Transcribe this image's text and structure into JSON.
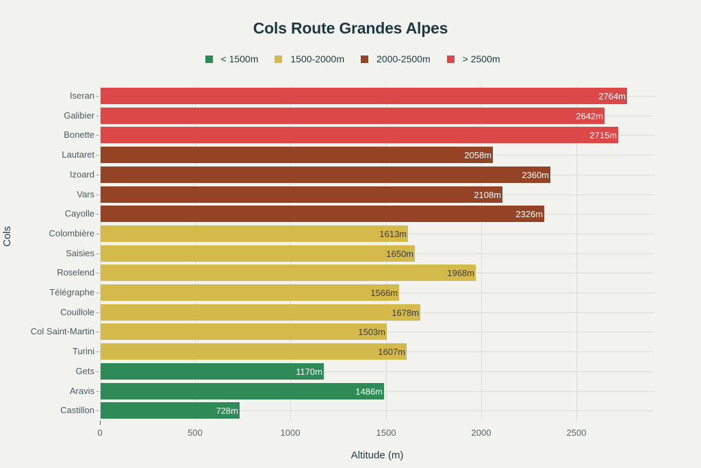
{
  "chart_data": {
    "type": "bar",
    "orientation": "horizontal",
    "title": "Cols Route Grandes Alpes",
    "xlabel": "Altitude (m)",
    "ylabel": "Cols",
    "xlim": [
      0,
      2910
    ],
    "xticks": [
      0,
      500,
      1000,
      1500,
      2000,
      2500
    ],
    "grid": true,
    "legend_position": "top",
    "legend": [
      {
        "label": "< 1500m",
        "color": "#2e8b57"
      },
      {
        "label": "1500-2000m",
        "color": "#d4b94b"
      },
      {
        "label": "2000-2500m",
        "color": "#944324"
      },
      {
        "label": "> 2500m",
        "color": "#dc4848"
      }
    ],
    "categories": [
      "Iseran",
      "Galibier",
      "Bonette",
      "Lautaret",
      "Izoard",
      "Vars",
      "Cayolle",
      "Colombière",
      "Saisies",
      "Roselend",
      "Télégraphe",
      "Couillole",
      "Col Saint-Martin",
      "Turini",
      "Gets",
      "Aravis",
      "Castillon"
    ],
    "values": [
      2764,
      2642,
      2715,
      2058,
      2360,
      2108,
      2326,
      1613,
      1650,
      1968,
      1566,
      1678,
      1503,
      1607,
      1170,
      1486,
      728
    ],
    "data_labels": [
      "2764m",
      "2642m",
      "2715m",
      "2058m",
      "2360m",
      "2108m",
      "2326m",
      "1613m",
      "1650m",
      "1968m",
      "1566m",
      "1678m",
      "1503m",
      "1607m",
      "1170m",
      "1486m",
      "728m"
    ],
    "groups": [
      "> 2500m",
      "> 2500m",
      "> 2500m",
      "2000-2500m",
      "2000-2500m",
      "2000-2500m",
      "2000-2500m",
      "1500-2000m",
      "1500-2000m",
      "1500-2000m",
      "1500-2000m",
      "1500-2000m",
      "1500-2000m",
      "1500-2000m",
      "< 1500m",
      "< 1500m",
      "< 1500m"
    ]
  },
  "label_colors": {
    "< 1500m": "#ffffff",
    "1500-2000m": "#3d3d3d",
    "2000-2500m": "#ffffff",
    "> 2500m": "#ffffff"
  }
}
